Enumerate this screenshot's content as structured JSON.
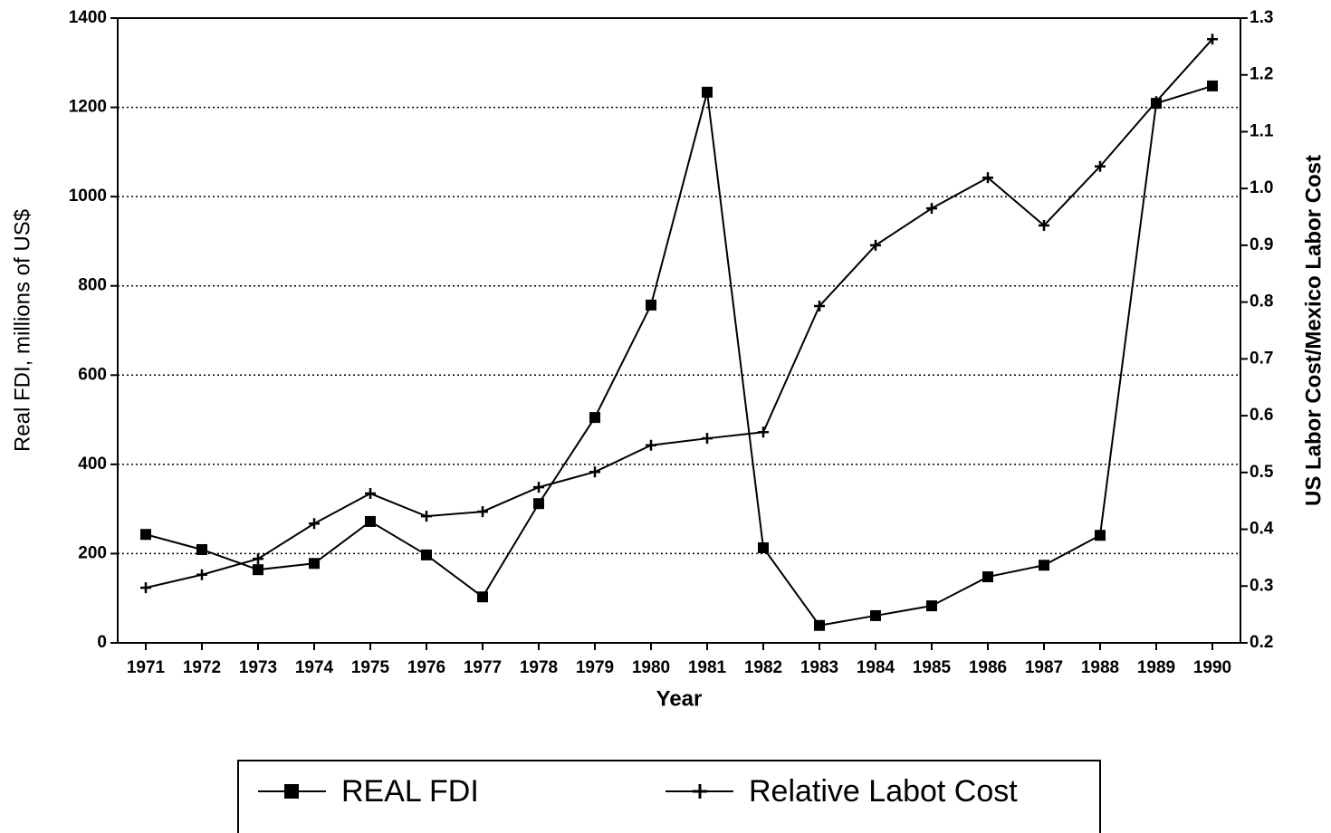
{
  "chart_data": {
    "type": "line",
    "x_label": "Year",
    "y_label": "Real FDI, millions of US$",
    "y2_label": "US Labor Cost/Mexico Labor Cost",
    "categories": [
      "1971",
      "1972",
      "1973",
      "1974",
      "1975",
      "1976",
      "1977",
      "1978",
      "1979",
      "1980",
      "1981",
      "1982",
      "1983",
      "1984",
      "1985",
      "1986",
      "1987",
      "1988",
      "1989",
      "1990"
    ],
    "series": [
      {
        "name": "REAL FDI",
        "color": "#000000",
        "marker": "square",
        "values": [
          243,
          209,
          164,
          178,
          272,
          197,
          103,
          312,
          505,
          757,
          1234,
          213,
          39,
          61,
          83,
          148,
          174,
          241,
          1209,
          1248
        ]
      },
      {
        "name": "Relative Labot Cost",
        "color": "#000000",
        "marker": "plus",
        "axis": "y2",
        "values": [
          0.297,
          0.32,
          0.348,
          0.41,
          0.463,
          0.423,
          0.431,
          0.474,
          0.501,
          0.548,
          0.56,
          0.571,
          0.793,
          0.9,
          0.965,
          1.019,
          0.935,
          1.039,
          1.153,
          1.263
        ]
      }
    ],
    "ylim": [
      0,
      1400
    ],
    "yticks": [
      0,
      200,
      400,
      600,
      800,
      1000,
      1200,
      1400
    ],
    "y2lim": [
      0.2,
      1.3
    ],
    "y2ticks": [
      0.2,
      0.3,
      0.4,
      0.5,
      0.6,
      0.7,
      0.8,
      0.9,
      {
        "value": 1,
        "label": "1.0"
      },
      1.1,
      1.2,
      1.3
    ],
    "grid": true,
    "legend": "bottom"
  }
}
